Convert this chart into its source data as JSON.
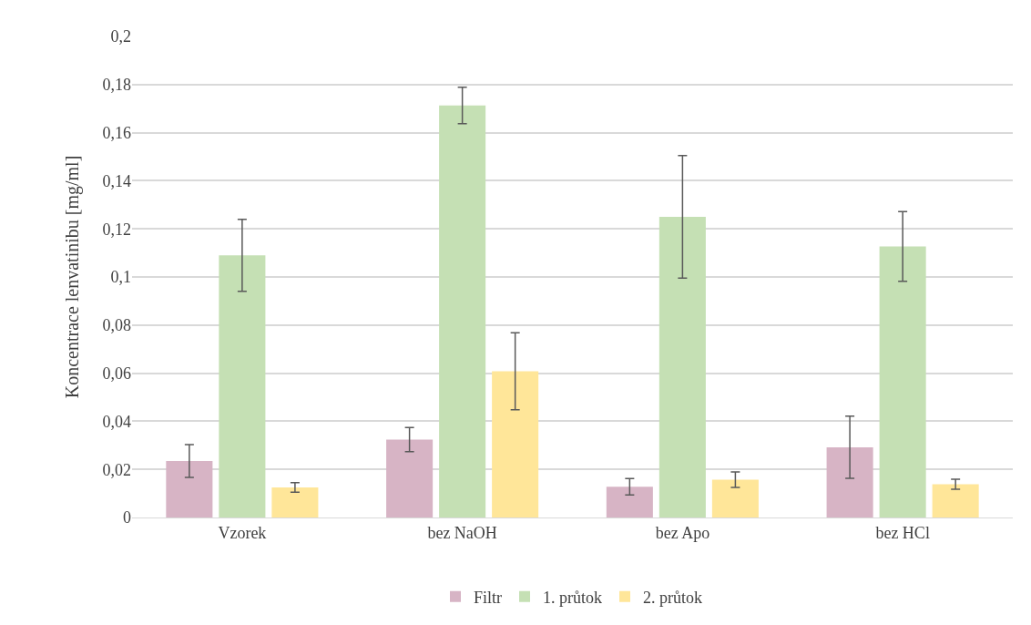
{
  "chart_data": {
    "type": "bar",
    "ylabel": "Koncentrace lenvatinibu [mg/ml]",
    "categories": [
      "Vzorek",
      "bez NaOH",
      "bez Apo",
      "bez HCl"
    ],
    "series": [
      {
        "name": "Filtr",
        "color": "#d7b4c5",
        "values": [
          0.0235,
          0.0324,
          0.0128,
          0.0292
        ],
        "errors": [
          0.0068,
          0.005,
          0.0034,
          0.0129
        ]
      },
      {
        "name": "1. průtok",
        "color": "#c5e0b4",
        "values": [
          0.109,
          0.1713,
          0.125,
          0.1127
        ],
        "errors": [
          0.015,
          0.0076,
          0.0255,
          0.0145
        ]
      },
      {
        "name": "2. průtok",
        "color": "#ffe699",
        "values": [
          0.0125,
          0.0608,
          0.0157,
          0.0138
        ],
        "errors": [
          0.002,
          0.016,
          0.0032,
          0.0021
        ]
      }
    ],
    "ylim": [
      0,
      0.2
    ],
    "yticks": [
      0,
      {
        "value": 0.02,
        "label": "0,02"
      },
      {
        "value": 0.04,
        "label": "0,04"
      },
      {
        "value": 0.06,
        "label": "0,06"
      },
      {
        "value": 0.08,
        "label": "0,08"
      },
      {
        "value": 0.1,
        "label": "0,1"
      },
      {
        "value": 0.12,
        "label": "0,12"
      },
      {
        "value": 0.14,
        "label": "0,14"
      },
      {
        "value": 0.16,
        "label": "0,16"
      },
      {
        "value": 0.18,
        "label": "0,18"
      },
      {
        "value": 0.2,
        "label": "0,2"
      }
    ],
    "grid": "y",
    "legend": "bottom"
  }
}
